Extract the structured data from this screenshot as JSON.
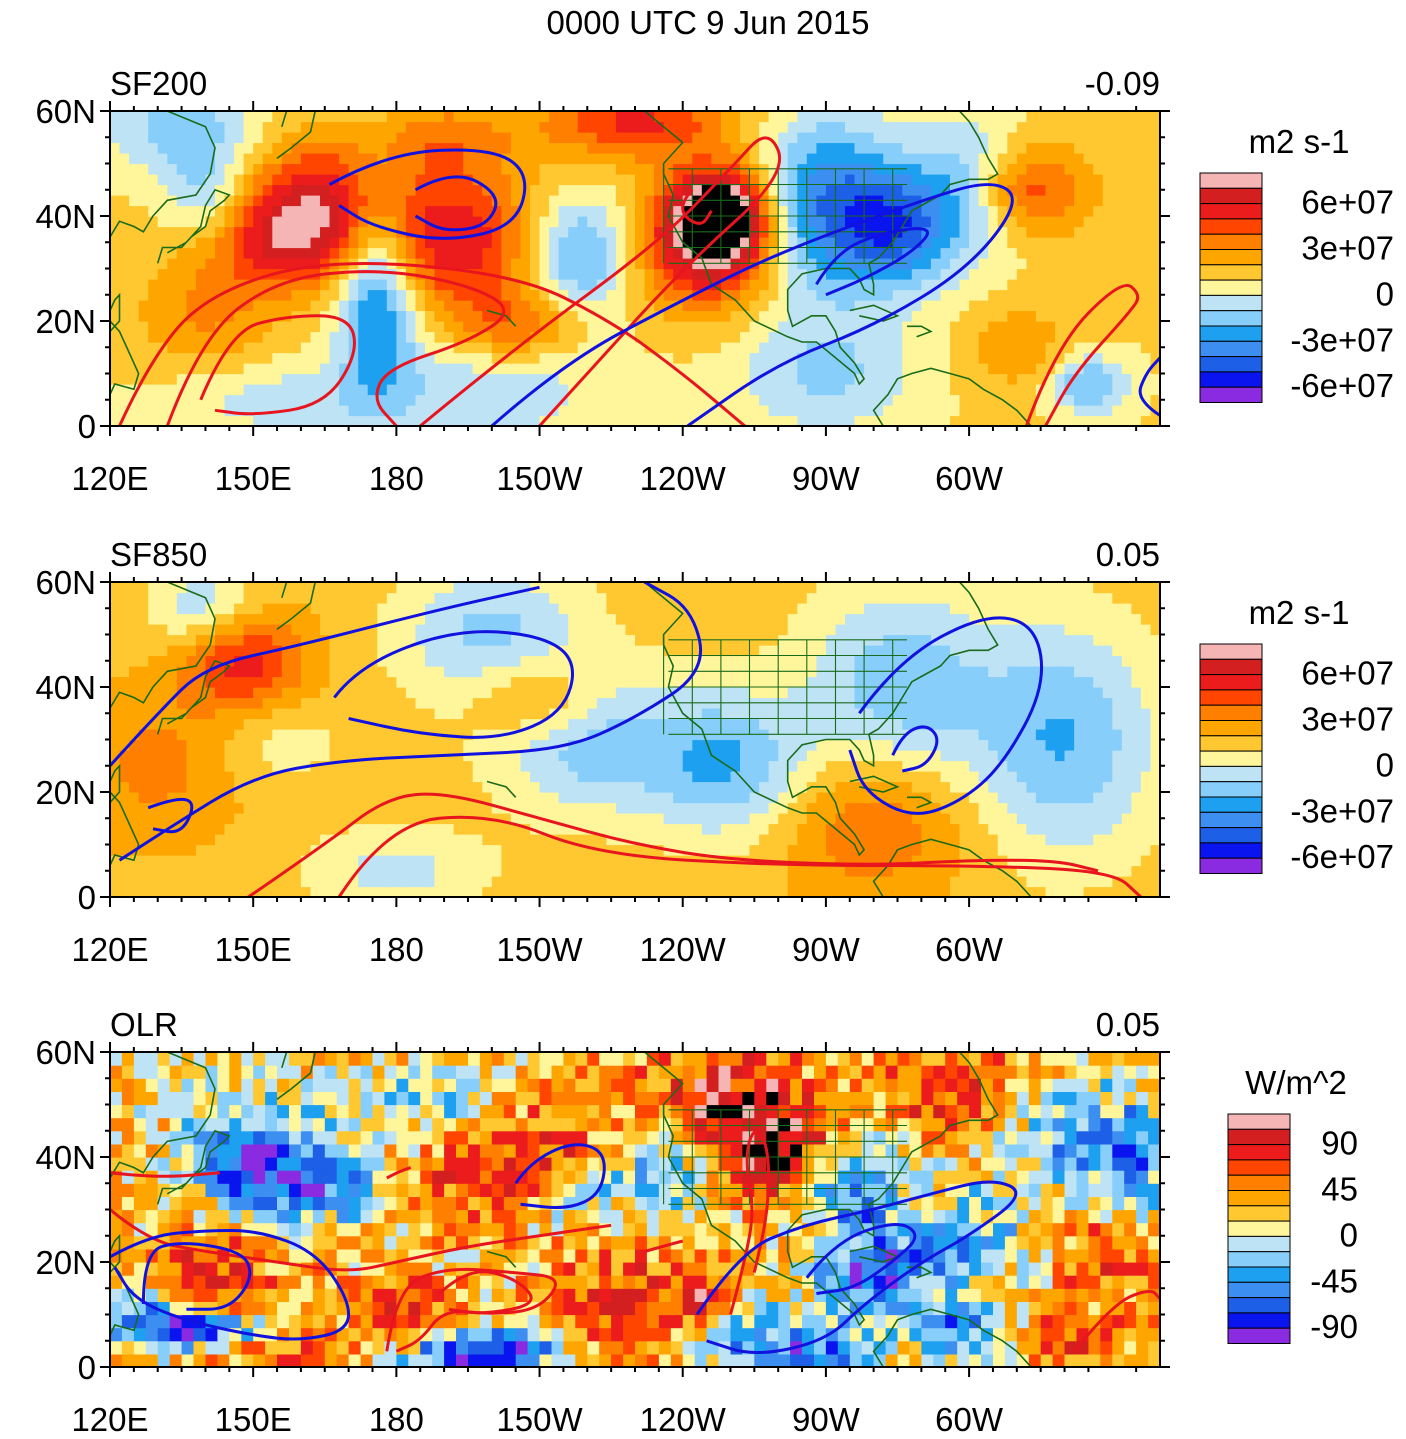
{
  "title": "0000 UTC 9 Jun 2015",
  "colors": {
    "axis": "#000000",
    "coast": "#1a6b1a",
    "positive_contour": "#e8141e",
    "negative_contour": "#1212e0"
  },
  "chart_data": [
    {
      "type": "heatmap",
      "panel": "SF200",
      "label_left": "SF200",
      "label_right": "-0.09",
      "xlim_deg_east": [
        120,
        340
      ],
      "ylim_deg_north": [
        0,
        60
      ],
      "x_ticks": [
        "120E",
        "150E",
        "180",
        "150W",
        "120W",
        "90W",
        "60W"
      ],
      "y_ticks": [
        "0",
        "20N",
        "40N",
        "60N"
      ],
      "colorbar": {
        "units": "m2 s-1",
        "labels": [
          "6e+07",
          "3e+07",
          "0",
          "-3e+07",
          "-6e+07"
        ],
        "colors": [
          "#f5b5b5",
          "#d31f1f",
          "#ec1c1c",
          "#ff4500",
          "#ff7f00",
          "#ffa500",
          "#ffc830",
          "#fff59a",
          "#bde3f5",
          "#87cefa",
          "#1ea0f0",
          "#3c8ef0",
          "#1d5fe6",
          "#0a14ef",
          "#8a2be2"
        ]
      },
      "contours": {
        "positive": [
          [
            [
              122,
              0
            ],
            [
              128,
              12
            ],
            [
              140,
              25
            ],
            [
              165,
              32
            ],
            [
              205,
              29
            ],
            [
              225,
              20
            ],
            [
              240,
              10
            ],
            [
              253,
              0
            ]
          ],
          [
            [
              139,
              5
            ],
            [
              145,
              18
            ],
            [
              157,
              21
            ],
            [
              170,
              21
            ],
            [
              172,
              14
            ],
            [
              165,
              4
            ],
            [
              150,
              2
            ],
            [
              142,
              3
            ]
          ],
          [
            [
              132,
              0
            ],
            [
              139,
              17
            ],
            [
              155,
              28
            ],
            [
              176,
              30
            ],
            [
              195,
              27
            ],
            [
              205,
              22
            ],
            [
              195,
              16
            ],
            [
              178,
              11
            ],
            [
              175,
              5
            ],
            [
              180,
              0
            ]
          ],
          [
            [
              185,
              0
            ],
            [
              205,
              15
            ],
            [
              235,
              35
            ],
            [
              250,
              49
            ],
            [
              258,
              57
            ],
            [
              262,
              48
            ],
            [
              240,
              30
            ],
            [
              220,
              10
            ],
            [
              210,
              0
            ]
          ],
          [
            [
              242,
              45
            ],
            [
              240,
              43
            ],
            [
              240,
              40
            ],
            [
              244,
              38
            ],
            [
              246,
              41
            ]
          ],
          [
            [
              312,
              0
            ],
            [
              318,
              15
            ],
            [
              332,
              28
            ],
            [
              336,
              25
            ],
            [
              334,
              22
            ],
            [
              322,
              10
            ],
            [
              316,
              0
            ]
          ]
        ],
        "negative": [
          [
            [
              166,
              46
            ],
            [
              178,
              52
            ],
            [
              200,
              53
            ],
            [
              208,
              48
            ],
            [
              205,
              38
            ],
            [
              190,
              35
            ],
            [
              175,
              38
            ],
            [
              168,
              42
            ]
          ],
          [
            [
              184,
              45
            ],
            [
              192,
              49
            ],
            [
              202,
              44
            ],
            [
              199,
              38
            ],
            [
              190,
              37
            ],
            [
              184,
              40
            ]
          ],
          [
            [
              200,
              0
            ],
            [
              215,
              12
            ],
            [
              240,
              24
            ],
            [
              260,
              33
            ],
            [
              290,
              43
            ],
            [
              305,
              47
            ],
            [
              311,
              43
            ],
            [
              300,
              30
            ],
            [
              280,
              19
            ],
            [
              260,
              12
            ],
            [
              241,
              0
            ]
          ],
          [
            [
              268,
              27
            ],
            [
              272,
              33
            ],
            [
              282,
              37
            ],
            [
              293,
              38
            ],
            [
              288,
              33
            ],
            [
              278,
              28
            ],
            [
              270,
              25
            ]
          ],
          [
            [
              340,
              2
            ],
            [
              335,
              5
            ],
            [
              337,
              10
            ],
            [
              340,
              13
            ]
          ]
        ]
      }
    },
    {
      "type": "heatmap",
      "panel": "SF850",
      "label_left": "SF850",
      "label_right": "0.05",
      "xlim_deg_east": [
        120,
        340
      ],
      "ylim_deg_north": [
        0,
        60
      ],
      "x_ticks": [
        "120E",
        "150E",
        "180",
        "150W",
        "120W",
        "90W",
        "60W"
      ],
      "y_ticks": [
        "0",
        "20N",
        "40N",
        "60N"
      ],
      "colorbar": {
        "units": "m2 s-1",
        "labels": [
          "6e+07",
          "3e+07",
          "0",
          "-3e+07",
          "-6e+07"
        ],
        "colors": [
          "#f5b5b5",
          "#d31f1f",
          "#ec1c1c",
          "#ff4500",
          "#ff7f00",
          "#ffa500",
          "#ffc830",
          "#fff59a",
          "#bde3f5",
          "#87cefa",
          "#1ea0f0",
          "#3c8ef0",
          "#1d5fe6",
          "#0a14ef",
          "#8a2be2"
        ]
      },
      "contours": {
        "positive": [
          [
            [
              168,
              0
            ],
            [
              178,
              14
            ],
            [
              200,
              16
            ],
            [
              222,
              8
            ],
            [
              260,
              6
            ],
            [
              300,
              6
            ],
            [
              330,
              5
            ],
            [
              336,
              0
            ]
          ],
          [
            [
              149,
              0
            ],
            [
              165,
              10
            ],
            [
              178,
              19
            ],
            [
              190,
              20
            ],
            [
              210,
              15
            ],
            [
              230,
              10
            ],
            [
              250,
              7
            ],
            [
              280,
              6
            ],
            [
              300,
              7
            ],
            [
              318,
              7
            ],
            [
              327,
              5
            ]
          ]
        ],
        "negative": [
          [
            [
              122,
              7
            ],
            [
              132,
              13
            ],
            [
              150,
              23
            ],
            [
              168,
              26
            ],
            [
              190,
              27
            ],
            [
              215,
              28
            ],
            [
              230,
              34
            ],
            [
              245,
              43
            ],
            [
              242,
              55
            ],
            [
              232,
              60
            ]
          ],
          [
            [
              120,
              25
            ],
            [
              130,
              35
            ],
            [
              140,
              44
            ],
            [
              160,
              48
            ],
            [
              190,
              55
            ],
            [
              210,
              59
            ]
          ],
          [
            [
              167,
              38
            ],
            [
              172,
              44
            ],
            [
              192,
              51
            ],
            [
              210,
              50
            ],
            [
              218,
              45
            ],
            [
              215,
              35
            ],
            [
              202,
              30
            ],
            [
              185,
              31
            ],
            [
              170,
              34
            ]
          ],
          [
            [
              128,
              17
            ],
            [
              134,
              19
            ],
            [
              138,
              18
            ],
            [
              135,
              12
            ],
            [
              129,
              13
            ]
          ],
          [
            [
              277,
              35
            ],
            [
              285,
              45
            ],
            [
              303,
              54
            ],
            [
              314,
              52
            ],
            [
              316,
              40
            ],
            [
              307,
              25
            ],
            [
              298,
              18
            ],
            [
              288,
              15
            ],
            [
              278,
              20
            ],
            [
              275,
              28
            ]
          ],
          [
            [
              284,
              27
            ],
            [
              286,
              31
            ],
            [
              291,
              33
            ],
            [
              294,
              30
            ],
            [
              291,
              25
            ],
            [
              286,
              24
            ]
          ]
        ]
      }
    },
    {
      "type": "heatmap",
      "panel": "OLR",
      "label_left": "OLR",
      "label_right": "0.05",
      "xlim_deg_east": [
        120,
        340
      ],
      "ylim_deg_north": [
        0,
        60
      ],
      "x_ticks": [
        "120E",
        "150E",
        "180",
        "150W",
        "120W",
        "90W",
        "60W"
      ],
      "y_ticks": [
        "0",
        "20N",
        "40N",
        "60N"
      ],
      "colorbar": {
        "units": "W/m^2",
        "labels": [
          "90",
          "45",
          "0",
          "-45",
          "-90"
        ],
        "colors": [
          "#f5b5b5",
          "#d31f1f",
          "#ec1c1c",
          "#ff4500",
          "#ff7f00",
          "#ffa500",
          "#ffc830",
          "#fff59a",
          "#bde3f5",
          "#87cefa",
          "#1ea0f0",
          "#3c8ef0",
          "#1d5fe6",
          "#0a14ef",
          "#8a2be2"
        ]
      },
      "contours": {
        "positive": [
          [
            [
              120,
              37
            ],
            [
              130,
              36
            ],
            [
              143,
              37
            ]
          ],
          [
            [
              120,
              30
            ],
            [
              128,
              24
            ],
            [
              140,
              22
            ],
            [
              155,
              20
            ],
            [
              170,
              18
            ],
            [
              180,
              20
            ],
            [
              195,
              23
            ],
            [
              210,
              25
            ],
            [
              225,
              27
            ]
          ],
          [
            [
              178,
              3
            ],
            [
              180,
              15
            ],
            [
              190,
              19
            ],
            [
              205,
              18
            ],
            [
              215,
              17
            ],
            [
              210,
              11
            ],
            [
              200,
              10
            ],
            [
              190,
              11
            ],
            [
              185,
              5
            ],
            [
              180,
              3
            ]
          ],
          [
            [
              189,
              14
            ],
            [
              195,
              19
            ],
            [
              205,
              17
            ],
            [
              210,
              12
            ],
            [
              198,
              10
            ],
            [
              191,
              11
            ]
          ],
          [
            [
              250,
              10
            ],
            [
              253,
              20
            ],
            [
              255,
              30
            ],
            [
              253,
              40
            ],
            [
              255,
              46
            ],
            [
              258,
              42
            ],
            [
              258,
              30
            ],
            [
              255,
              18
            ]
          ],
          [
            [
              322,
              3
            ],
            [
              330,
              12
            ],
            [
              338,
              15
            ],
            [
              340,
              13
            ]
          ],
          [
            [
              178,
              36
            ],
            [
              180,
              37
            ],
            [
              183,
              38
            ]
          ],
          [
            [
              232,
              22
            ],
            [
              236,
              23
            ],
            [
              240,
              24
            ]
          ]
        ],
        "negative": [
          [
            [
              120,
              21
            ],
            [
              128,
              25
            ],
            [
              140,
              26
            ],
            [
              151,
              26
            ],
            [
              163,
              22
            ],
            [
              170,
              13
            ],
            [
              170,
              7
            ],
            [
              160,
              5
            ],
            [
              150,
              6
            ],
            [
              135,
              9
            ],
            [
              125,
              13
            ],
            [
              121,
              19
            ]
          ],
          [
            [
              127,
              12
            ],
            [
              127,
              22
            ],
            [
              135,
              24
            ],
            [
              148,
              22
            ],
            [
              150,
              17
            ],
            [
              145,
              11
            ],
            [
              136,
              11
            ]
          ],
          [
            [
              205,
              35
            ],
            [
              208,
              39
            ],
            [
              217,
              43
            ],
            [
              224,
              41
            ],
            [
              223,
              33
            ],
            [
              216,
              30
            ],
            [
              206,
              31
            ]
          ],
          [
            [
              243,
              10
            ],
            [
              252,
              22
            ],
            [
              265,
              27
            ],
            [
              280,
              30
            ],
            [
              292,
              33
            ],
            [
              305,
              36
            ],
            [
              312,
              33
            ],
            [
              300,
              25
            ],
            [
              290,
              20
            ],
            [
              278,
              12
            ],
            [
              270,
              5
            ],
            [
              255,
              2
            ],
            [
              245,
              5
            ]
          ],
          [
            [
              266,
              17
            ],
            [
              272,
              24
            ],
            [
              285,
              28
            ],
            [
              290,
              25
            ],
            [
              284,
              20
            ],
            [
              276,
              15
            ],
            [
              268,
              14
            ]
          ]
        ]
      }
    }
  ]
}
